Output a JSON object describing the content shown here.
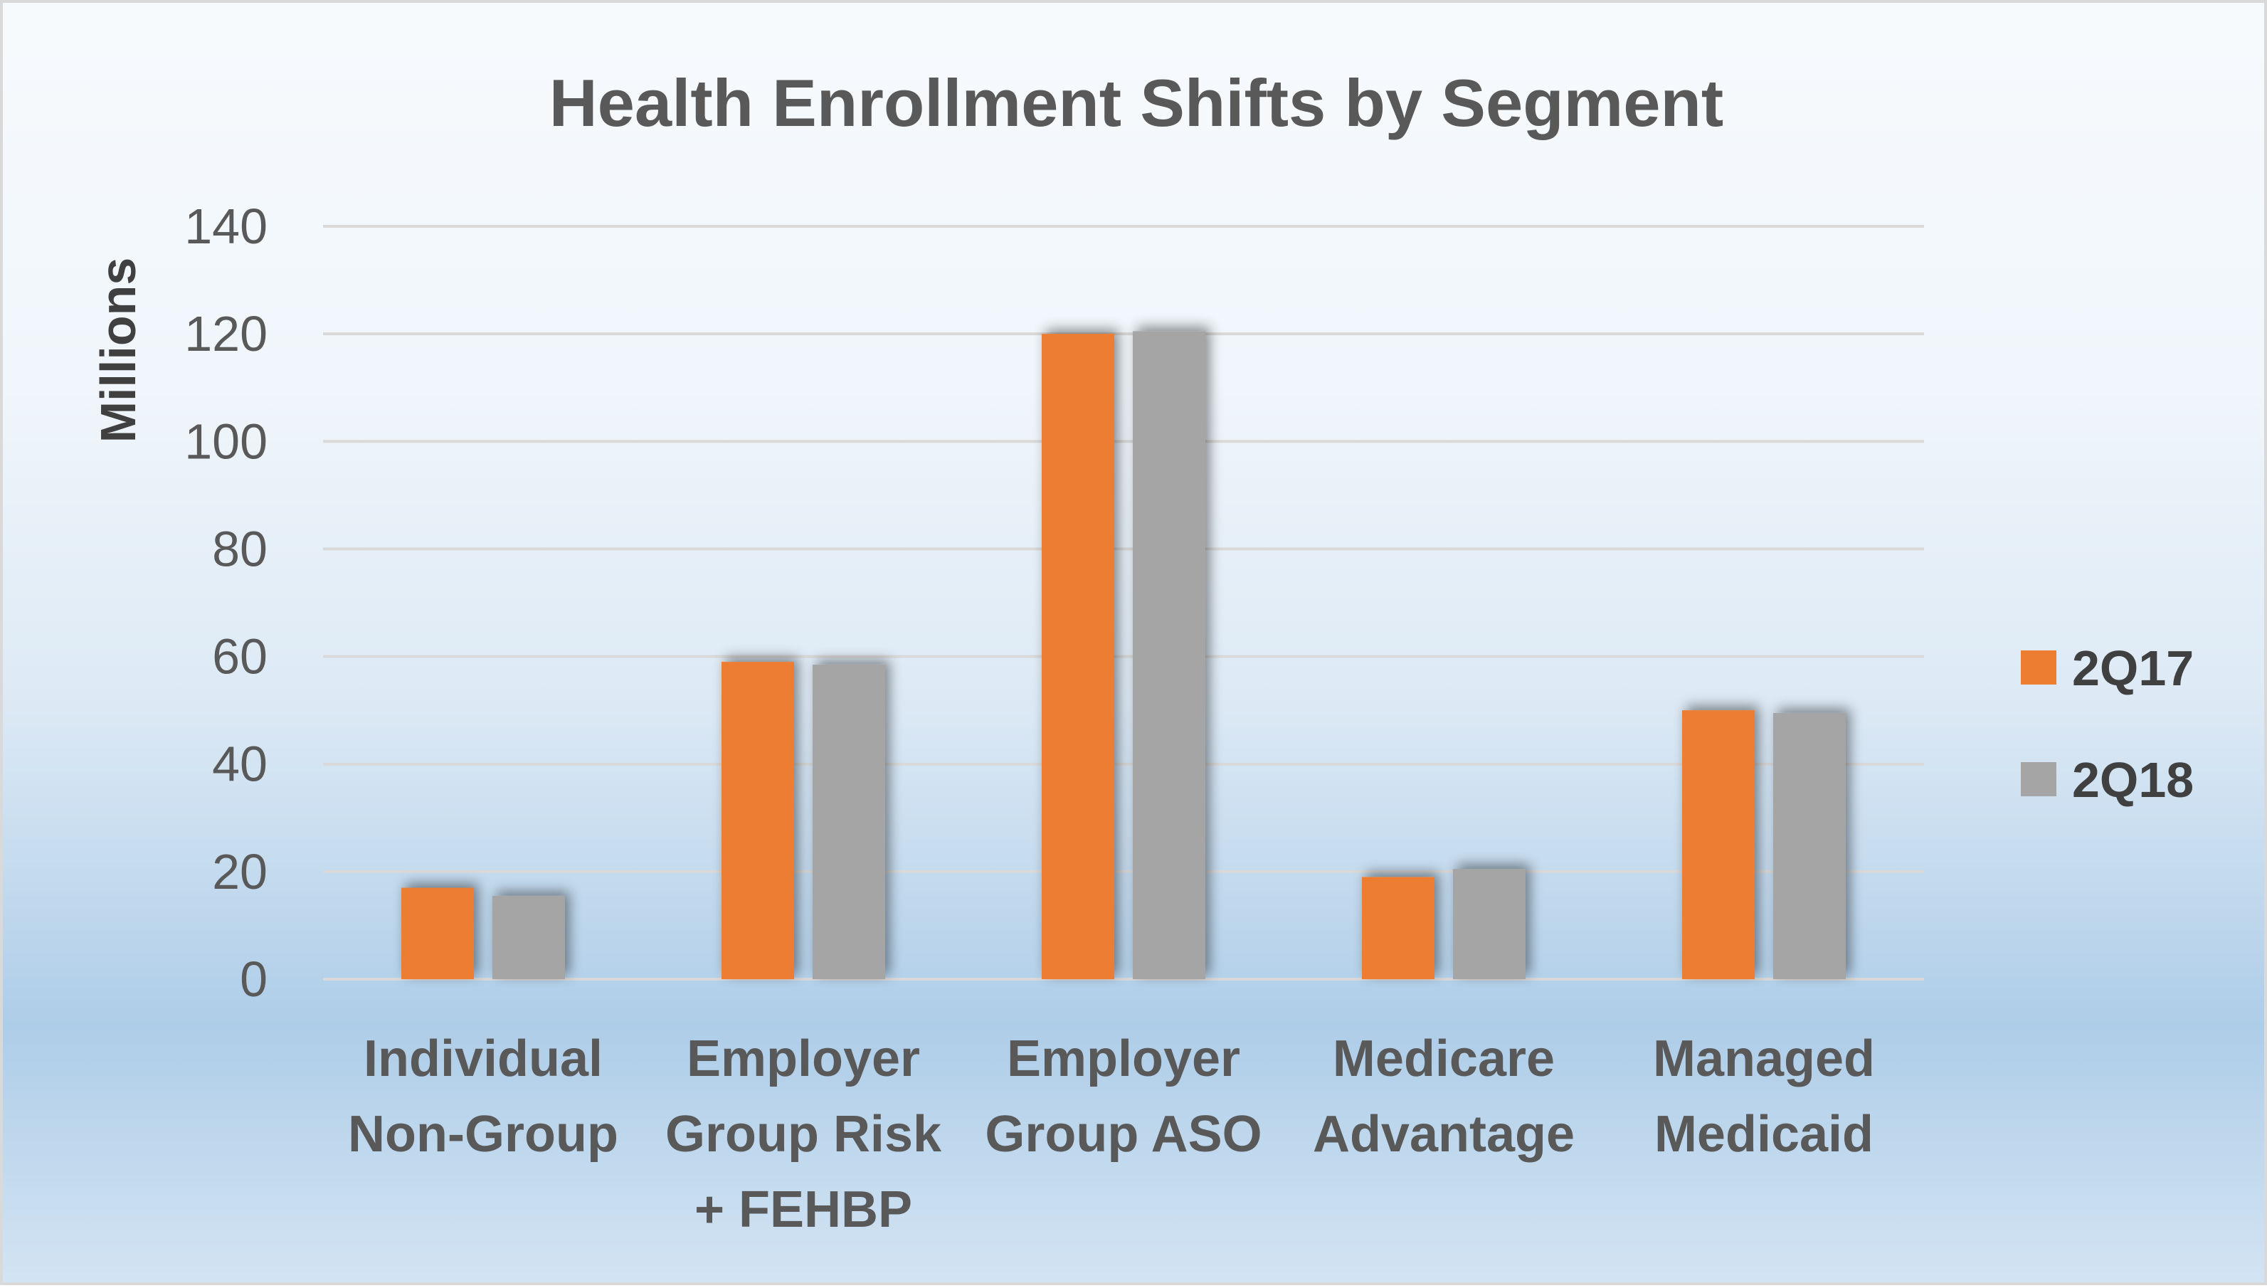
{
  "chart_data": {
    "type": "bar",
    "title": "Health Enrollment Shifts by Segment",
    "xlabel": "",
    "ylabel": "Millions",
    "ylim": [
      0,
      140
    ],
    "yticks": [
      "0",
      "20",
      "40",
      "60",
      "80",
      "100",
      "120",
      "140"
    ],
    "grid": true,
    "legend_position": "right",
    "categories": [
      [
        "Individual",
        "Non-Group"
      ],
      [
        "Employer",
        "Group Risk",
        "+ FEHBP"
      ],
      [
        "Employer",
        "Group ASO"
      ],
      [
        "Medicare",
        "Advantage"
      ],
      [
        "Managed",
        "Medicaid"
      ]
    ],
    "series": [
      {
        "name": "2Q17",
        "color": "#ed7d31",
        "values": [
          17,
          59,
          120,
          19,
          50
        ]
      },
      {
        "name": "2Q18",
        "color": "#a5a5a5",
        "values": [
          15.5,
          58.5,
          120.5,
          20.5,
          49.5
        ]
      }
    ]
  }
}
